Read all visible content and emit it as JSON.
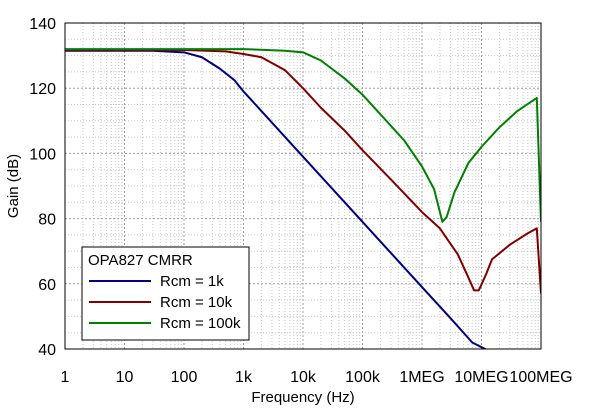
{
  "chart_data": {
    "type": "line",
    "title": "",
    "xlabel": "Frequency (Hz)",
    "ylabel": "Gain (dB)",
    "xscale": "log",
    "xlim": [
      1,
      100000000
    ],
    "ylim": [
      40,
      140
    ],
    "grid": true,
    "x_ticks": [
      1,
      10,
      100,
      1000,
      10000,
      100000,
      1000000,
      10000000,
      100000000
    ],
    "x_tick_labels": [
      "1",
      "10",
      "100",
      "1k",
      "10k",
      "100k",
      "1MEG",
      "10MEG",
      "100MEG"
    ],
    "y_ticks": [
      40,
      60,
      80,
      100,
      120,
      140
    ],
    "y_tick_labels": [
      "40",
      "60",
      "80",
      "100",
      "120",
      "140"
    ],
    "legend": {
      "title": "OPA827 CMRR",
      "placement": "bottom-left"
    },
    "series": [
      {
        "name": "Rcm = 1k",
        "color": "#000080",
        "points": [
          [
            1,
            131.5
          ],
          [
            30,
            131.5
          ],
          [
            100,
            131
          ],
          [
            200,
            129.5
          ],
          [
            400,
            126
          ],
          [
            700,
            122.5
          ],
          [
            1000,
            119
          ],
          [
            2000,
            113
          ],
          [
            5000,
            105
          ],
          [
            10000,
            99
          ],
          [
            100000,
            79
          ],
          [
            1000000,
            59
          ],
          [
            3000000,
            49.5
          ],
          [
            7000000,
            42
          ],
          [
            13000000,
            39.5
          ]
        ]
      },
      {
        "name": "Rcm = 10k",
        "color": "#800000",
        "points": [
          [
            1,
            131.7
          ],
          [
            100,
            131.7
          ],
          [
            500,
            131.3
          ],
          [
            1000,
            130.5
          ],
          [
            2000,
            129.5
          ],
          [
            5000,
            125.5
          ],
          [
            10000,
            120
          ],
          [
            20000,
            114
          ],
          [
            50000,
            107
          ],
          [
            100000,
            101
          ],
          [
            300000,
            92
          ],
          [
            1000000,
            82
          ],
          [
            2000000,
            77
          ],
          [
            4000000,
            69
          ],
          [
            6000000,
            62
          ],
          [
            7500000,
            58
          ],
          [
            9000000,
            58
          ],
          [
            12000000,
            63
          ],
          [
            15000000,
            67.5
          ],
          [
            30000000,
            72
          ],
          [
            60000000,
            75.5
          ],
          [
            85000000,
            77
          ],
          [
            100000000,
            57
          ]
        ]
      },
      {
        "name": "Rcm = 100k",
        "color": "#008000",
        "points": [
          [
            1,
            132
          ],
          [
            1000,
            132
          ],
          [
            5000,
            131.5
          ],
          [
            10000,
            131
          ],
          [
            20000,
            128.5
          ],
          [
            50000,
            123
          ],
          [
            100000,
            118
          ],
          [
            200000,
            112
          ],
          [
            500000,
            104
          ],
          [
            1000000,
            96
          ],
          [
            1600000,
            89
          ],
          [
            2200000,
            79
          ],
          [
            2600000,
            80.5
          ],
          [
            3500000,
            88
          ],
          [
            6000000,
            97
          ],
          [
            10000000,
            102
          ],
          [
            20000000,
            108
          ],
          [
            40000000,
            113
          ],
          [
            85000000,
            117
          ],
          [
            100000000,
            79
          ]
        ]
      }
    ]
  }
}
